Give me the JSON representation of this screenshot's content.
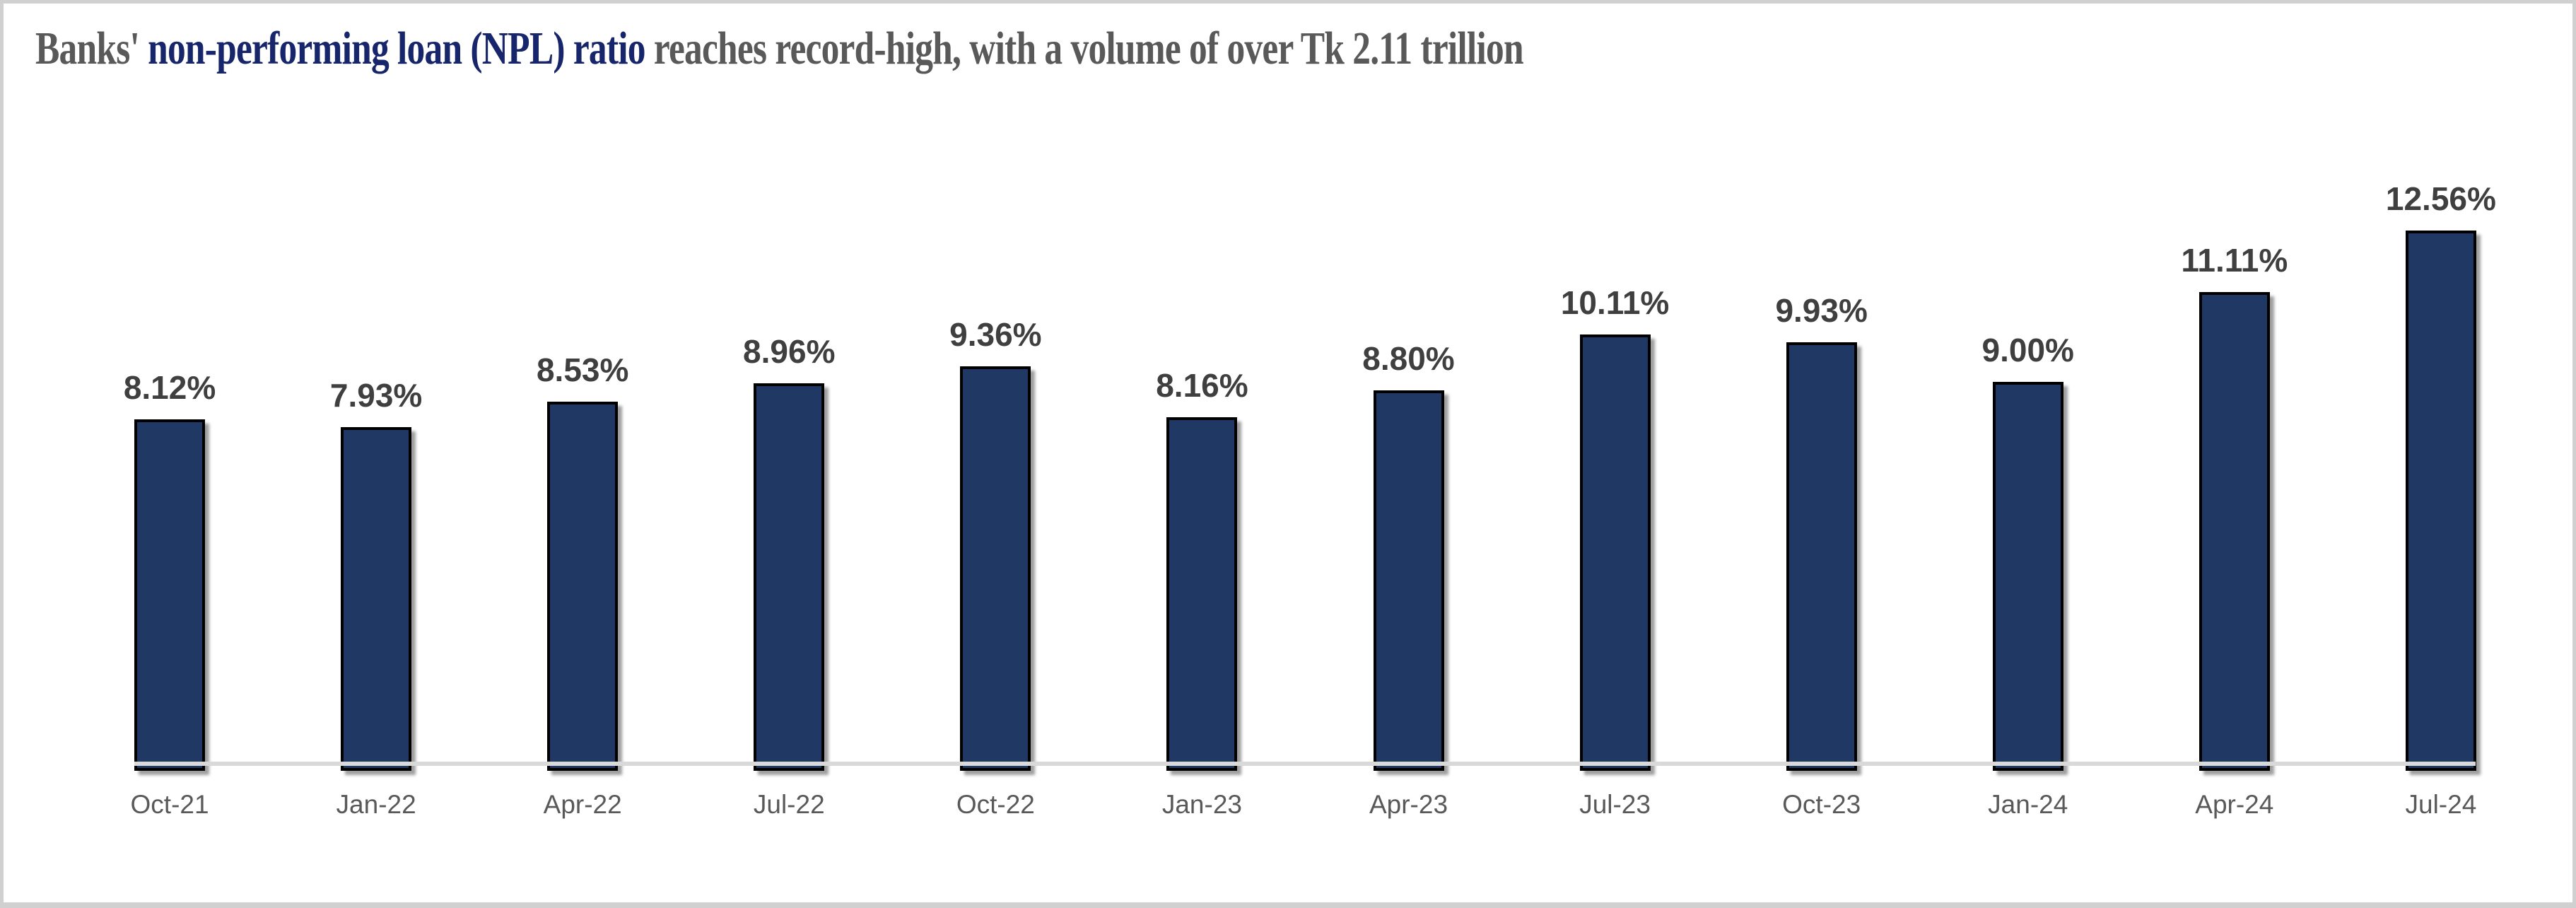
{
  "title": {
    "prefix": "Banks' ",
    "highlight": "non-performing loan (NPL) ratio",
    "suffix": " reaches record-high, with a volume of over Tk 2.11 trillion"
  },
  "colors": {
    "background": "#FFFFFF",
    "frame_border": "#D0D0D0",
    "title_text": "#595959",
    "title_highlight": "#17256B",
    "bar_fill": "#1F3864",
    "bar_border": "#000000",
    "value_label": "#3F3F3F",
    "axis_label": "#595959",
    "axis_line": "#D9D9D9"
  },
  "chart_data": {
    "type": "bar",
    "title": "Banks' non-performing loan (NPL) ratio reaches record-high, with a volume of over Tk 2.11 trillion",
    "categories": [
      "Oct-21",
      "Jan-22",
      "Apr-22",
      "Jul-22",
      "Oct-22",
      "Jan-23",
      "Apr-23",
      "Jul-23",
      "Oct-23",
      "Jan-24",
      "Apr-24",
      "Jul-24"
    ],
    "values": [
      8.12,
      7.93,
      8.53,
      8.96,
      9.36,
      8.16,
      8.8,
      10.11,
      9.93,
      9.0,
      11.11,
      12.56
    ],
    "value_labels": [
      "8.12%",
      "7.93%",
      "8.53%",
      "8.96%",
      "9.36%",
      "8.16%",
      "8.80%",
      "10.11%",
      "9.93%",
      "9.00%",
      "11.11%",
      "12.56%"
    ],
    "unit": "percent",
    "xlabel": "",
    "ylabel": "",
    "ylim": [
      0,
      13
    ],
    "grid": false,
    "legend": false,
    "data_labels_shown": true
  }
}
